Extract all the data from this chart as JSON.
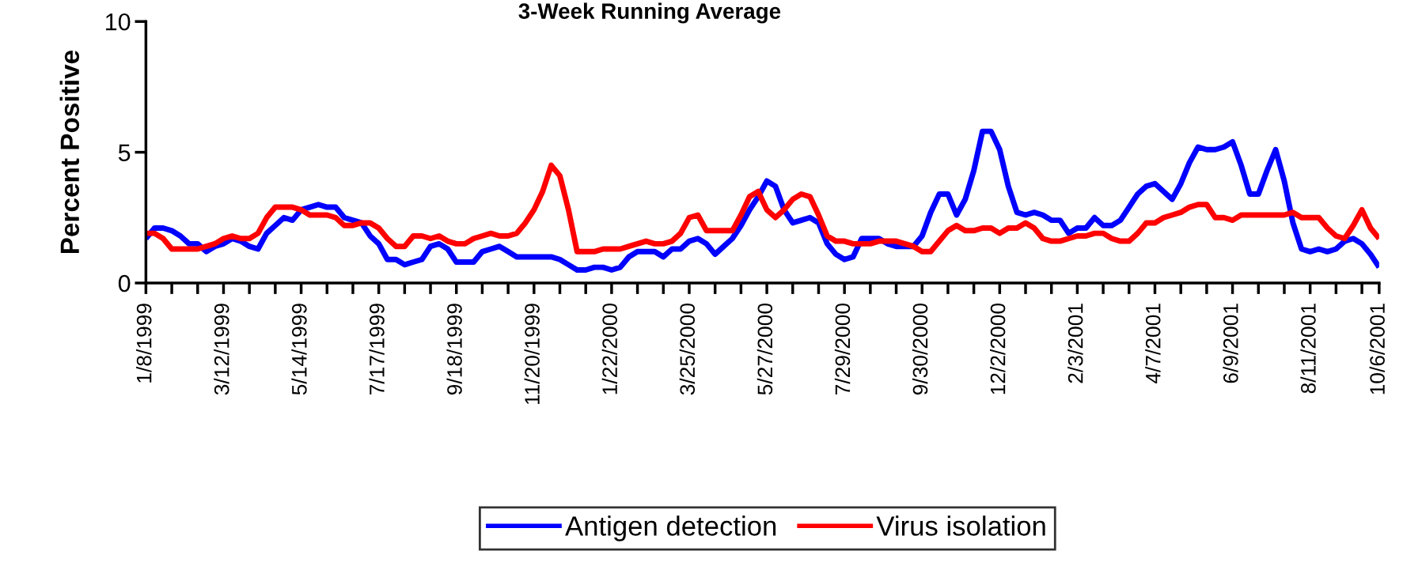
{
  "chart_data": {
    "type": "line",
    "title": "3-Week Running Average",
    "ylabel": "Percent Positive",
    "categories": [
      "1/8/1999",
      null,
      null,
      null,
      null,
      null,
      null,
      null,
      null,
      "3/12/1999",
      null,
      null,
      null,
      null,
      null,
      null,
      null,
      null,
      "5/14/1999",
      null,
      null,
      null,
      null,
      null,
      null,
      null,
      null,
      "7/17/1999",
      null,
      null,
      null,
      null,
      null,
      null,
      null,
      null,
      "9/18/1999",
      null,
      null,
      null,
      null,
      null,
      null,
      null,
      null,
      "11/20/1999",
      null,
      null,
      null,
      null,
      null,
      null,
      null,
      null,
      "1/22/2000",
      null,
      null,
      null,
      null,
      null,
      null,
      null,
      null,
      "3/25/2000",
      null,
      null,
      null,
      null,
      null,
      null,
      null,
      null,
      "5/27/2000",
      null,
      null,
      null,
      null,
      null,
      null,
      null,
      null,
      "7/29/2000",
      null,
      null,
      null,
      null,
      null,
      null,
      null,
      null,
      "9/30/2000",
      null,
      null,
      null,
      null,
      null,
      null,
      null,
      null,
      "12/2/2000",
      null,
      null,
      null,
      null,
      null,
      null,
      null,
      null,
      "2/3/2001",
      null,
      null,
      null,
      null,
      null,
      null,
      null,
      null,
      "4/7/2001",
      null,
      null,
      null,
      null,
      null,
      null,
      null,
      null,
      "6/9/2001",
      null,
      null,
      null,
      null,
      null,
      null,
      null,
      null,
      "8/11/2001",
      null,
      null,
      null,
      null,
      null,
      null,
      null,
      "10/6/2001"
    ],
    "series": [
      {
        "name": "Antigen detection",
        "color": "#0000ff",
        "values": [
          1.7,
          2.1,
          2.1,
          2.0,
          1.8,
          1.5,
          1.5,
          1.2,
          1.4,
          1.5,
          1.7,
          1.6,
          1.4,
          1.3,
          1.9,
          2.2,
          2.5,
          2.4,
          2.8,
          2.9,
          3.0,
          2.9,
          2.9,
          2.5,
          2.4,
          2.3,
          1.8,
          1.5,
          0.9,
          0.9,
          0.7,
          0.8,
          0.9,
          1.4,
          1.5,
          1.3,
          0.8,
          0.8,
          0.8,
          1.2,
          1.3,
          1.4,
          1.2,
          1.0,
          1.0,
          1.0,
          1.0,
          1.0,
          0.9,
          0.7,
          0.5,
          0.5,
          0.6,
          0.6,
          0.5,
          0.6,
          1.0,
          1.2,
          1.2,
          1.2,
          1.0,
          1.3,
          1.3,
          1.6,
          1.7,
          1.5,
          1.1,
          1.4,
          1.7,
          2.2,
          2.8,
          3.3,
          3.9,
          3.7,
          2.8,
          2.3,
          2.4,
          2.5,
          2.3,
          1.5,
          1.1,
          0.9,
          1.0,
          1.7,
          1.7,
          1.7,
          1.5,
          1.4,
          1.4,
          1.4,
          1.8,
          2.7,
          3.4,
          3.4,
          2.6,
          3.2,
          4.3,
          5.8,
          5.8,
          5.1,
          3.7,
          2.7,
          2.6,
          2.7,
          2.6,
          2.4,
          2.4,
          1.9,
          2.1,
          2.1,
          2.5,
          2.2,
          2.2,
          2.4,
          2.9,
          3.4,
          3.7,
          3.8,
          3.5,
          3.2,
          3.8,
          4.6,
          5.2,
          5.1,
          5.1,
          5.2,
          5.4,
          4.5,
          3.4,
          3.4,
          4.3,
          5.1,
          3.9,
          2.3,
          1.3,
          1.2,
          1.3,
          1.2,
          1.3,
          1.6,
          1.7,
          1.5,
          1.1,
          0.6
        ]
      },
      {
        "name": "Virus isolation",
        "color": "#ff0000",
        "values": [
          1.9,
          1.9,
          1.7,
          1.3,
          1.3,
          1.3,
          1.3,
          1.4,
          1.5,
          1.7,
          1.8,
          1.7,
          1.7,
          1.9,
          2.5,
          2.9,
          2.9,
          2.9,
          2.8,
          2.6,
          2.6,
          2.6,
          2.5,
          2.2,
          2.2,
          2.3,
          2.3,
          2.1,
          1.7,
          1.4,
          1.4,
          1.8,
          1.8,
          1.7,
          1.8,
          1.6,
          1.5,
          1.5,
          1.7,
          1.8,
          1.9,
          1.8,
          1.8,
          1.9,
          2.3,
          2.8,
          3.5,
          4.5,
          4.1,
          2.8,
          1.2,
          1.2,
          1.2,
          1.3,
          1.3,
          1.3,
          1.4,
          1.5,
          1.6,
          1.5,
          1.5,
          1.6,
          1.9,
          2.5,
          2.6,
          2.0,
          2.0,
          2.0,
          2.0,
          2.6,
          3.3,
          3.5,
          2.8,
          2.5,
          2.8,
          3.2,
          3.4,
          3.3,
          2.6,
          1.8,
          1.6,
          1.6,
          1.5,
          1.5,
          1.5,
          1.6,
          1.6,
          1.6,
          1.5,
          1.4,
          1.2,
          1.2,
          1.6,
          2.0,
          2.2,
          2.0,
          2.0,
          2.1,
          2.1,
          1.9,
          2.1,
          2.1,
          2.3,
          2.1,
          1.7,
          1.6,
          1.6,
          1.7,
          1.8,
          1.8,
          1.9,
          1.9,
          1.7,
          1.6,
          1.6,
          1.9,
          2.3,
          2.3,
          2.5,
          2.6,
          2.7,
          2.9,
          3.0,
          3.0,
          2.5,
          2.5,
          2.4,
          2.6,
          2.6,
          2.6,
          2.6,
          2.6,
          2.6,
          2.7,
          2.5,
          2.5,
          2.5,
          2.1,
          1.8,
          1.7,
          2.2,
          2.8,
          2.1,
          1.7
        ]
      }
    ],
    "ylim": [
      0,
      10
    ],
    "yticks": [
      0,
      5,
      10
    ],
    "grid": false,
    "legend": "bottom",
    "marker": "none",
    "line_style": "solid"
  }
}
